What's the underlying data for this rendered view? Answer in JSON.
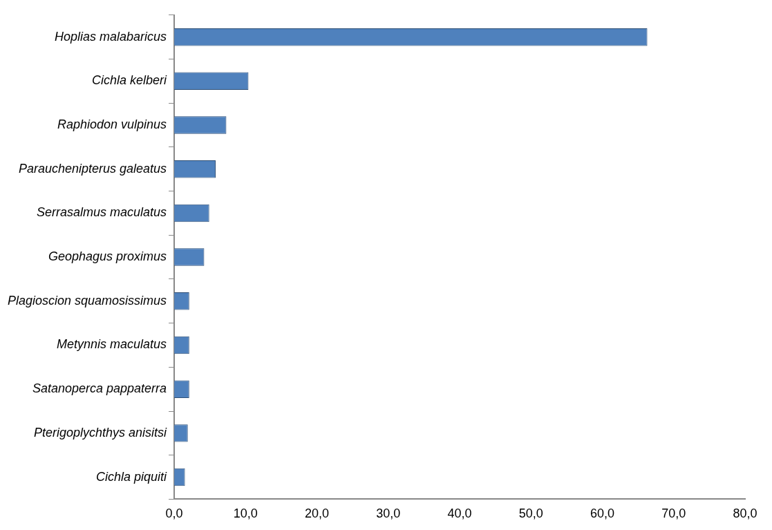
{
  "chart_data": {
    "type": "bar",
    "orientation": "horizontal",
    "categories": [
      "Hoplias malabaricus",
      "Cichla kelberi",
      "Raphiodon vulpinus",
      "Parauchenipterus galeatus",
      "Serrasalmus maculatus",
      "Geophagus proximus",
      "Plagioscion squamosissimus",
      "Metynnis maculatus",
      "Satanoperca pappaterra",
      "Pterigoplychthys anisitsi",
      "Cichla piquiti"
    ],
    "values": [
      66.3,
      10.4,
      7.3,
      5.8,
      4.9,
      4.2,
      2.1,
      2.1,
      2.1,
      1.9,
      1.5
    ],
    "color": "#4f81bd",
    "xlim": [
      0,
      80
    ],
    "xticks": [
      {
        "value": 0,
        "label": "0,0"
      },
      {
        "value": 10,
        "label": "10,0"
      },
      {
        "value": 20,
        "label": "20,0"
      },
      {
        "value": 30,
        "label": "30,0"
      },
      {
        "value": 40,
        "label": "40,0"
      },
      {
        "value": 50,
        "label": "50,0"
      },
      {
        "value": 60,
        "label": "60,0"
      },
      {
        "value": 70,
        "label": "70,0"
      },
      {
        "value": 80,
        "label": "80,0"
      }
    ],
    "grid": false,
    "legend": false
  }
}
